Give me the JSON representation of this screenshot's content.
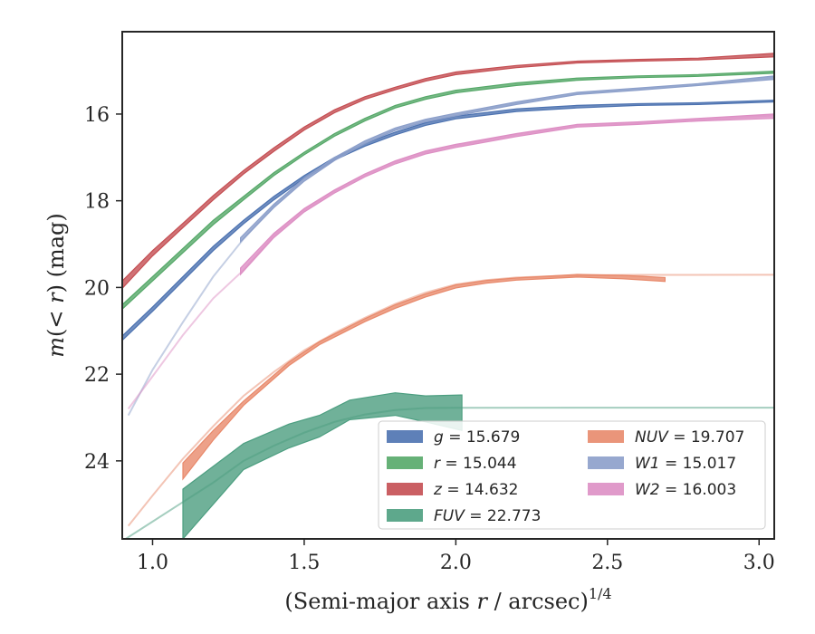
{
  "chart_data": {
    "type": "area",
    "title": "",
    "xlabel": "(Semi-major axis r / arcsec)",
    "xlabel_superscript": "1/4",
    "ylabel": "m(< r) (mag)",
    "xlim": [
      0.9,
      3.05
    ],
    "ylim": [
      25.8,
      14.1
    ],
    "y_inverted": true,
    "grid": false,
    "legend_position": "lower-right",
    "x_ticks": [
      "1.0",
      "1.5",
      "2.0",
      "2.5",
      "3.0"
    ],
    "y_ticks": [
      "16",
      "18",
      "20",
      "22",
      "24"
    ],
    "series": [
      {
        "name": "g = 15.679",
        "label_var": "g",
        "label_val": "15.679",
        "color": "#4c72b0",
        "upper": [
          [
            0.9,
            21.12
          ],
          [
            1.0,
            20.45
          ],
          [
            1.1,
            19.75
          ],
          [
            1.2,
            19.05
          ],
          [
            1.3,
            18.45
          ],
          [
            1.4,
            17.9
          ],
          [
            1.5,
            17.42
          ],
          [
            1.6,
            17.0
          ],
          [
            1.7,
            16.68
          ],
          [
            1.8,
            16.42
          ],
          [
            1.9,
            16.2
          ],
          [
            2.0,
            16.05
          ],
          [
            2.2,
            15.88
          ],
          [
            2.4,
            15.8
          ],
          [
            2.6,
            15.76
          ],
          [
            2.8,
            15.74
          ],
          [
            3.05,
            15.68
          ]
        ],
        "lower": [
          [
            0.9,
            21.22
          ],
          [
            1.0,
            20.55
          ],
          [
            1.1,
            19.85
          ],
          [
            1.2,
            19.15
          ],
          [
            1.3,
            18.53
          ],
          [
            1.4,
            17.98
          ],
          [
            1.5,
            17.48
          ],
          [
            1.6,
            17.06
          ],
          [
            1.7,
            16.74
          ],
          [
            1.8,
            16.48
          ],
          [
            1.9,
            16.26
          ],
          [
            2.0,
            16.11
          ],
          [
            2.2,
            15.94
          ],
          [
            2.4,
            15.86
          ],
          [
            2.6,
            15.8
          ],
          [
            2.8,
            15.78
          ],
          [
            3.05,
            15.72
          ]
        ]
      },
      {
        "name": "r = 15.044",
        "label_var": "r",
        "label_val": "15.044",
        "color": "#55a868",
        "upper": [
          [
            0.9,
            20.4
          ],
          [
            1.0,
            19.75
          ],
          [
            1.1,
            19.1
          ],
          [
            1.2,
            18.45
          ],
          [
            1.3,
            17.9
          ],
          [
            1.4,
            17.35
          ],
          [
            1.5,
            16.88
          ],
          [
            1.6,
            16.45
          ],
          [
            1.7,
            16.1
          ],
          [
            1.8,
            15.8
          ],
          [
            1.9,
            15.6
          ],
          [
            2.0,
            15.45
          ],
          [
            2.2,
            15.28
          ],
          [
            2.4,
            15.17
          ],
          [
            2.6,
            15.12
          ],
          [
            2.8,
            15.09
          ],
          [
            3.05,
            15.01
          ]
        ],
        "lower": [
          [
            0.9,
            20.5
          ],
          [
            1.0,
            19.85
          ],
          [
            1.1,
            19.2
          ],
          [
            1.2,
            18.55
          ],
          [
            1.3,
            17.98
          ],
          [
            1.4,
            17.42
          ],
          [
            1.5,
            16.94
          ],
          [
            1.6,
            16.51
          ],
          [
            1.7,
            16.16
          ],
          [
            1.8,
            15.86
          ],
          [
            1.9,
            15.66
          ],
          [
            2.0,
            15.51
          ],
          [
            2.2,
            15.34
          ],
          [
            2.4,
            15.22
          ],
          [
            2.6,
            15.16
          ],
          [
            2.8,
            15.13
          ],
          [
            3.05,
            15.06
          ]
        ]
      },
      {
        "name": "z = 14.632",
        "label_var": "z",
        "label_val": "14.632",
        "color": "#c44e52",
        "upper": [
          [
            0.9,
            19.85
          ],
          [
            1.0,
            19.15
          ],
          [
            1.1,
            18.52
          ],
          [
            1.2,
            17.88
          ],
          [
            1.3,
            17.3
          ],
          [
            1.4,
            16.78
          ],
          [
            1.5,
            16.3
          ],
          [
            1.6,
            15.9
          ],
          [
            1.7,
            15.6
          ],
          [
            1.8,
            15.38
          ],
          [
            1.9,
            15.18
          ],
          [
            2.0,
            15.03
          ],
          [
            2.2,
            14.88
          ],
          [
            2.4,
            14.78
          ],
          [
            2.6,
            14.74
          ],
          [
            2.8,
            14.71
          ],
          [
            3.05,
            14.6
          ]
        ],
        "lower": [
          [
            0.9,
            20.02
          ],
          [
            1.0,
            19.27
          ],
          [
            1.1,
            18.62
          ],
          [
            1.2,
            17.98
          ],
          [
            1.3,
            17.38
          ],
          [
            1.4,
            16.86
          ],
          [
            1.5,
            16.37
          ],
          [
            1.6,
            15.97
          ],
          [
            1.7,
            15.66
          ],
          [
            1.8,
            15.44
          ],
          [
            1.9,
            15.24
          ],
          [
            2.0,
            15.09
          ],
          [
            2.2,
            14.93
          ],
          [
            2.4,
            14.82
          ],
          [
            2.6,
            14.78
          ],
          [
            2.8,
            14.75
          ],
          [
            3.05,
            14.68
          ]
        ]
      },
      {
        "name": "FUV = 22.773",
        "label_var": "FUV",
        "label_val": "22.773",
        "color": "#4c9e80",
        "upper": [
          [
            1.1,
            24.65
          ],
          [
            1.3,
            23.6
          ],
          [
            1.45,
            23.15
          ],
          [
            1.55,
            22.95
          ],
          [
            1.65,
            22.6
          ],
          [
            1.8,
            22.43
          ],
          [
            1.9,
            22.5
          ],
          [
            2.02,
            22.48
          ]
        ],
        "lower": [
          [
            1.1,
            25.8
          ],
          [
            1.3,
            24.2
          ],
          [
            1.45,
            23.7
          ],
          [
            1.55,
            23.45
          ],
          [
            1.65,
            23.05
          ],
          [
            1.8,
            22.95
          ],
          [
            1.9,
            23.1
          ],
          [
            2.02,
            23.3
          ]
        ],
        "line": [
          [
            0.9,
            25.85
          ],
          [
            1.0,
            25.4
          ],
          [
            1.1,
            24.95
          ],
          [
            1.2,
            24.5
          ],
          [
            1.3,
            24.0
          ],
          [
            1.4,
            23.65
          ],
          [
            1.5,
            23.35
          ],
          [
            1.6,
            23.1
          ],
          [
            1.7,
            22.93
          ],
          [
            1.8,
            22.83
          ],
          [
            1.9,
            22.78
          ],
          [
            2.0,
            22.775
          ],
          [
            3.05,
            22.773
          ]
        ]
      },
      {
        "name": "NUV = 19.707",
        "label_var": "NUV",
        "label_val": "19.707",
        "color": "#e8896b",
        "upper": [
          [
            1.1,
            24.05
          ],
          [
            1.2,
            23.3
          ],
          [
            1.3,
            22.62
          ],
          [
            1.45,
            21.72
          ],
          [
            1.55,
            21.25
          ],
          [
            1.7,
            20.72
          ],
          [
            1.8,
            20.4
          ],
          [
            1.9,
            20.15
          ],
          [
            2.0,
            19.94
          ],
          [
            2.1,
            19.84
          ],
          [
            2.2,
            19.78
          ],
          [
            2.4,
            19.7
          ],
          [
            2.55,
            19.72
          ],
          [
            2.69,
            19.77
          ]
        ],
        "lower": [
          [
            1.1,
            24.42
          ],
          [
            1.2,
            23.52
          ],
          [
            1.3,
            22.72
          ],
          [
            1.45,
            21.8
          ],
          [
            1.55,
            21.32
          ],
          [
            1.7,
            20.79
          ],
          [
            1.8,
            20.48
          ],
          [
            1.9,
            20.22
          ],
          [
            2.0,
            20.01
          ],
          [
            2.1,
            19.9
          ],
          [
            2.2,
            19.83
          ],
          [
            2.4,
            19.76
          ],
          [
            2.55,
            19.8
          ],
          [
            2.69,
            19.86
          ]
        ],
        "line": [
          [
            0.92,
            25.5
          ],
          [
            1.0,
            24.8
          ],
          [
            1.1,
            23.95
          ],
          [
            1.2,
            23.2
          ],
          [
            1.3,
            22.5
          ],
          [
            1.4,
            21.95
          ],
          [
            1.5,
            21.45
          ],
          [
            1.6,
            21.05
          ],
          [
            1.7,
            20.7
          ],
          [
            1.8,
            20.38
          ],
          [
            1.9,
            20.12
          ],
          [
            2.0,
            19.93
          ],
          [
            2.1,
            19.83
          ],
          [
            2.2,
            19.77
          ],
          [
            2.4,
            19.72
          ],
          [
            2.6,
            19.71
          ],
          [
            3.05,
            19.707
          ]
        ]
      },
      {
        "name": "W1 = 15.017",
        "label_var": "W1",
        "label_val": "15.017",
        "color": "#8c9fca",
        "upper": [
          [
            1.29,
            18.85
          ],
          [
            1.4,
            18.08
          ],
          [
            1.5,
            17.48
          ],
          [
            1.6,
            17.0
          ],
          [
            1.7,
            16.62
          ],
          [
            1.8,
            16.32
          ],
          [
            1.9,
            16.12
          ],
          [
            2.0,
            15.98
          ],
          [
            2.2,
            15.72
          ],
          [
            2.4,
            15.5
          ],
          [
            2.6,
            15.4
          ],
          [
            2.8,
            15.3
          ],
          [
            3.05,
            15.12
          ]
        ],
        "lower": [
          [
            1.29,
            18.95
          ],
          [
            1.4,
            18.16
          ],
          [
            1.5,
            17.55
          ],
          [
            1.6,
            17.07
          ],
          [
            1.7,
            16.68
          ],
          [
            1.8,
            16.38
          ],
          [
            1.9,
            16.18
          ],
          [
            2.0,
            16.04
          ],
          [
            2.2,
            15.78
          ],
          [
            2.4,
            15.55
          ],
          [
            2.6,
            15.45
          ],
          [
            2.8,
            15.34
          ],
          [
            3.05,
            15.2
          ]
        ],
        "line": [
          [
            0.92,
            22.95
          ],
          [
            1.0,
            21.9
          ],
          [
            1.1,
            20.8
          ],
          [
            1.2,
            19.75
          ],
          [
            1.3,
            18.88
          ],
          [
            1.4,
            18.12
          ],
          [
            1.5,
            17.52
          ],
          [
            1.6,
            17.03
          ],
          [
            1.7,
            16.65
          ],
          [
            1.8,
            16.35
          ],
          [
            1.9,
            16.15
          ],
          [
            2.0,
            16.01
          ],
          [
            2.2,
            15.75
          ],
          [
            2.4,
            15.52
          ],
          [
            2.6,
            15.42
          ],
          [
            2.8,
            15.32
          ],
          [
            3.05,
            15.15
          ]
        ]
      },
      {
        "name": "W2 = 16.003",
        "label_var": "W2",
        "label_val": "16.003",
        "color": "#dd8fc4",
        "upper": [
          [
            1.29,
            19.55
          ],
          [
            1.4,
            18.75
          ],
          [
            1.5,
            18.18
          ],
          [
            1.6,
            17.75
          ],
          [
            1.7,
            17.38
          ],
          [
            1.8,
            17.08
          ],
          [
            1.9,
            16.85
          ],
          [
            2.0,
            16.7
          ],
          [
            2.2,
            16.45
          ],
          [
            2.4,
            16.24
          ],
          [
            2.6,
            16.18
          ],
          [
            2.8,
            16.1
          ],
          [
            3.05,
            16.0
          ]
        ],
        "lower": [
          [
            1.29,
            19.7
          ],
          [
            1.4,
            18.85
          ],
          [
            1.5,
            18.26
          ],
          [
            1.6,
            17.82
          ],
          [
            1.7,
            17.45
          ],
          [
            1.8,
            17.15
          ],
          [
            1.9,
            16.92
          ],
          [
            2.0,
            16.77
          ],
          [
            2.2,
            16.52
          ],
          [
            2.4,
            16.3
          ],
          [
            2.6,
            16.24
          ],
          [
            2.8,
            16.16
          ],
          [
            3.05,
            16.1
          ]
        ],
        "line": [
          [
            0.92,
            22.8
          ],
          [
            1.0,
            22.05
          ],
          [
            1.1,
            21.1
          ],
          [
            1.2,
            20.25
          ],
          [
            1.3,
            19.6
          ],
          [
            1.4,
            18.8
          ],
          [
            1.5,
            18.22
          ],
          [
            1.6,
            17.78
          ],
          [
            1.7,
            17.41
          ],
          [
            1.8,
            17.11
          ],
          [
            1.9,
            16.88
          ],
          [
            2.0,
            16.73
          ],
          [
            2.2,
            16.48
          ],
          [
            2.4,
            16.27
          ],
          [
            2.6,
            16.21
          ],
          [
            2.8,
            16.13
          ],
          [
            3.05,
            16.03
          ]
        ]
      }
    ]
  }
}
